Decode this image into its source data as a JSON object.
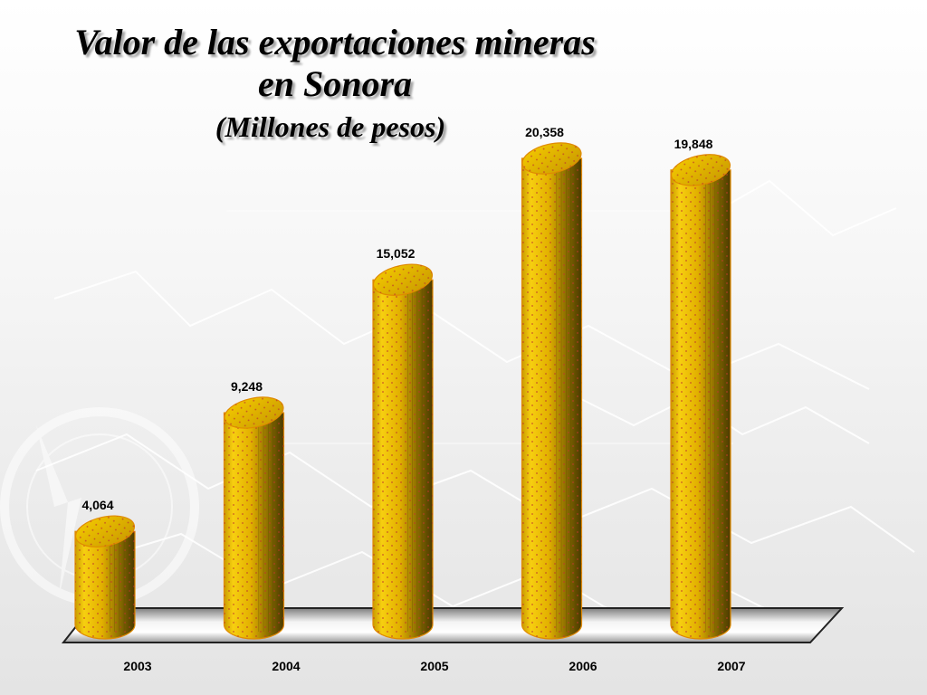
{
  "titles": {
    "line1": "Valor de las exportaciones mineras",
    "line2": "en Sonora",
    "line3": "(Millones de pesos)"
  },
  "colors": {
    "bar_light": "#f5c400",
    "bar_mid": "#d9a500",
    "bar_dark": "#6b5400",
    "dots": "#c0392b",
    "floor_light": "#f2f2f2",
    "floor_dark": "#8a8a8a"
  },
  "chart_data": {
    "type": "bar",
    "style": "3d-cylinder",
    "categories": [
      "2003",
      "2004",
      "2005",
      "2006",
      "2007"
    ],
    "values": [
      4064,
      9248,
      15052,
      20358,
      19848
    ],
    "value_labels": [
      "4,064",
      "9,248",
      "15,052",
      "20,358",
      "19,848"
    ],
    "ylim": [
      0,
      20358
    ],
    "grid": false,
    "legend": false
  }
}
